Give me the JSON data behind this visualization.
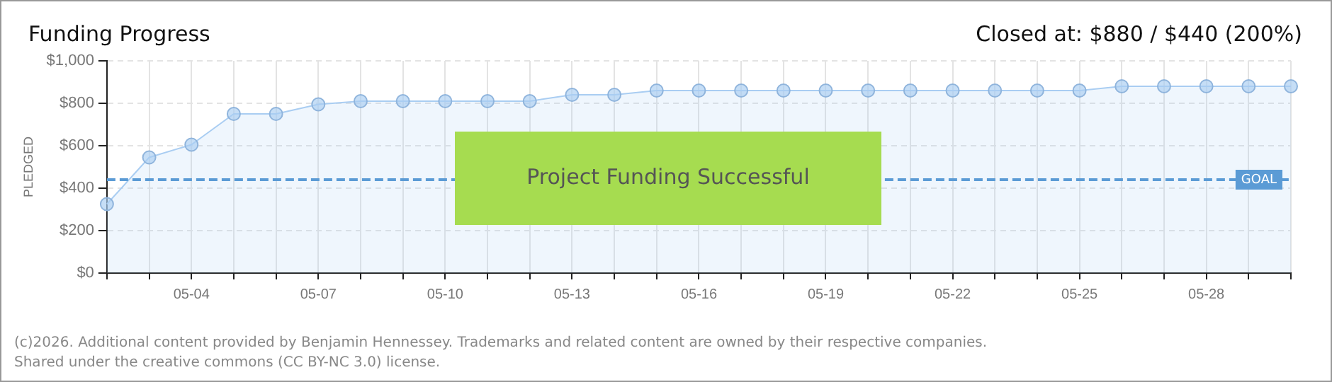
{
  "chart_data": {
    "type": "area",
    "title": "Funding Progress",
    "subtitle": "Closed at: $880 / $440 (200%)",
    "ylabel": "PLEDGED",
    "categories": [
      null,
      null,
      "05-04",
      null,
      null,
      "05-07",
      null,
      null,
      "05-10",
      null,
      null,
      "05-13",
      null,
      null,
      "05-16",
      null,
      null,
      "05-19",
      null,
      null,
      "05-22",
      null,
      null,
      "05-25",
      null,
      null,
      "05-28",
      null,
      null
    ],
    "series": [
      {
        "color": "#a9cdf2",
        "values": [
          325,
          545,
          605,
          750,
          750,
          795,
          810,
          810,
          810,
          810,
          810,
          840,
          840,
          860,
          860,
          860,
          860,
          860,
          860,
          860,
          860,
          860,
          860,
          860,
          880,
          880,
          880,
          880,
          880
        ]
      }
    ],
    "ylim": [
      0,
      1000
    ],
    "yticks": [
      {
        "value": 0,
        "label": "$0"
      },
      {
        "value": 200,
        "label": "$200"
      },
      {
        "value": 400,
        "label": "$400"
      },
      {
        "value": 600,
        "label": "$600"
      },
      {
        "value": 800,
        "label": "$800"
      },
      {
        "value": 1000,
        "label": "$1,000"
      }
    ],
    "ref_lines": [
      {
        "axis": "y",
        "value": 440,
        "label": "GOAL",
        "color": "#5b9bd5",
        "line_style": "dashed"
      }
    ],
    "annotations": [
      "Project Funding Successful",
      "(c)2026. Additional content provided by Benjamin Hennessey. Trademarks and related content are owned by their respective companies.",
      "Shared under the creative commons (CC BY-NC 3.0) license."
    ],
    "grid": true,
    "marker": "circle",
    "line_style": "solid",
    "legend": false
  }
}
